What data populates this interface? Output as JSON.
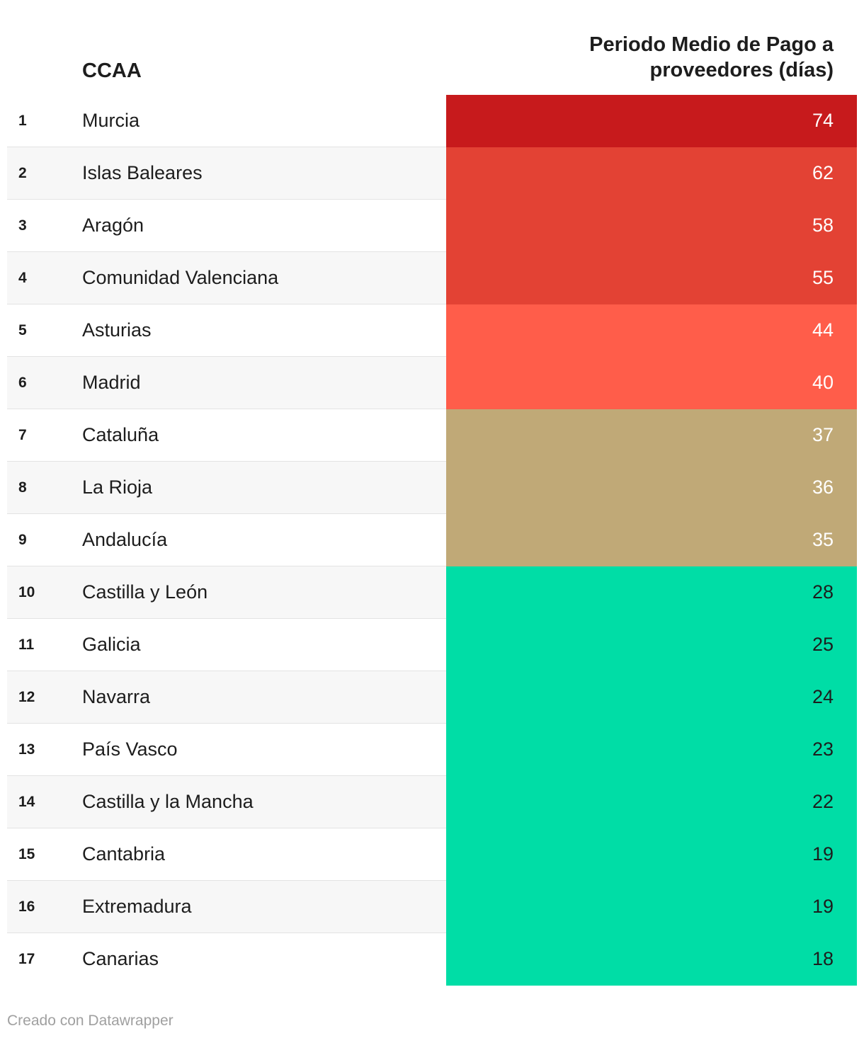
{
  "chart_data": {
    "type": "table",
    "columns": [
      "CCAA",
      "Periodo Medio de Pago a proveedores (días)"
    ],
    "rows": [
      {
        "rank": "1",
        "name": "Murcia",
        "value": 74,
        "color": "#c71a1c",
        "text_color": "#ffffff"
      },
      {
        "rank": "2",
        "name": "Islas Baleares",
        "value": 62,
        "color": "#e34234",
        "text_color": "#ffffff"
      },
      {
        "rank": "3",
        "name": "Aragón",
        "value": 58,
        "color": "#e34234",
        "text_color": "#ffffff"
      },
      {
        "rank": "4",
        "name": "Comunidad Valenciana",
        "value": 55,
        "color": "#e34234",
        "text_color": "#ffffff"
      },
      {
        "rank": "5",
        "name": "Asturias",
        "value": 44,
        "color": "#ff5d4a",
        "text_color": "#ffffff"
      },
      {
        "rank": "6",
        "name": "Madrid",
        "value": 40,
        "color": "#ff5d4a",
        "text_color": "#ffffff"
      },
      {
        "rank": "7",
        "name": "Cataluña",
        "value": 37,
        "color": "#c0a977",
        "text_color": "#ffffff"
      },
      {
        "rank": "8",
        "name": "La Rioja",
        "value": 36,
        "color": "#c0a977",
        "text_color": "#ffffff"
      },
      {
        "rank": "9",
        "name": "Andalucía",
        "value": 35,
        "color": "#c0a977",
        "text_color": "#ffffff"
      },
      {
        "rank": "10",
        "name": "Castilla y León",
        "value": 28,
        "color": "#00dda6",
        "text_color": "#1d1d1d"
      },
      {
        "rank": "11",
        "name": "Galicia",
        "value": 25,
        "color": "#00dda6",
        "text_color": "#1d1d1d"
      },
      {
        "rank": "12",
        "name": "Navarra",
        "value": 24,
        "color": "#00dda6",
        "text_color": "#1d1d1d"
      },
      {
        "rank": "13",
        "name": "País Vasco",
        "value": 23,
        "color": "#00dda6",
        "text_color": "#1d1d1d"
      },
      {
        "rank": "14",
        "name": "Castilla y la Mancha",
        "value": 22,
        "color": "#00dda6",
        "text_color": "#1d1d1d"
      },
      {
        "rank": "15",
        "name": "Cantabria",
        "value": 19,
        "color": "#00dda6",
        "text_color": "#1d1d1d"
      },
      {
        "rank": "16",
        "name": "Extremadura",
        "value": 19,
        "color": "#00dda6",
        "text_color": "#1d1d1d"
      },
      {
        "rank": "17",
        "name": "Canarias",
        "value": 18,
        "color": "#00dda6",
        "text_color": "#1d1d1d"
      }
    ]
  },
  "header": {
    "ccaa": "CCAA",
    "pmp": "Periodo Medio de Pago a proveedores (días)"
  },
  "footer": {
    "credit": "Creado con Datawrapper"
  }
}
